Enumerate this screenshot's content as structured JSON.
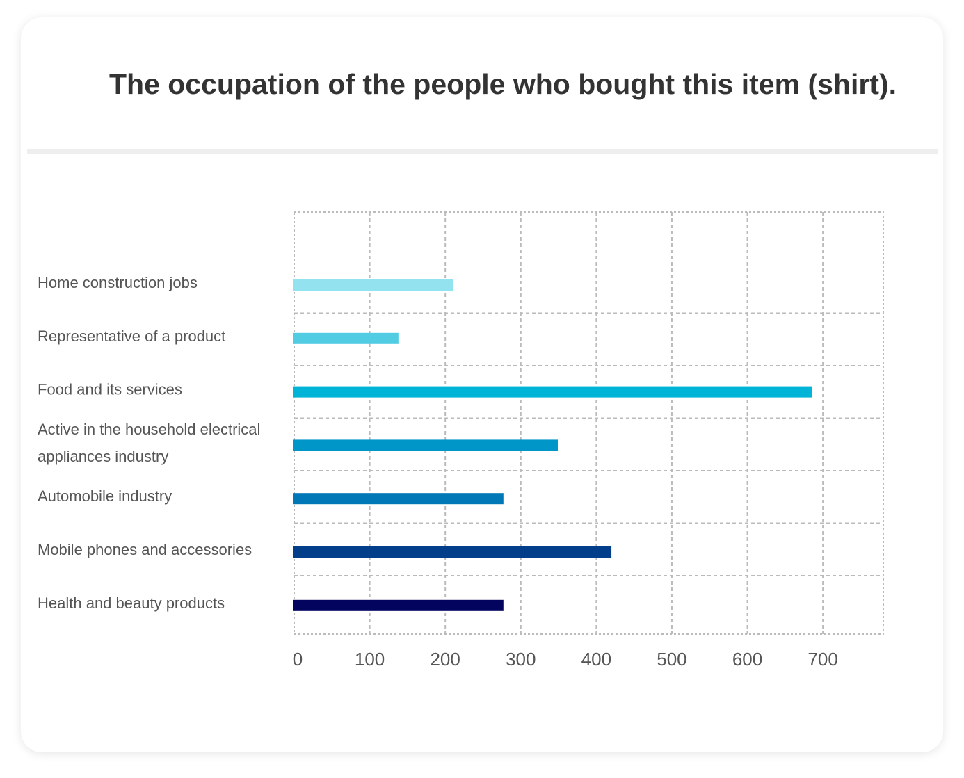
{
  "chart_data": {
    "type": "bar",
    "orientation": "horizontal",
    "title": "The occupation of the people who bought this item (shirt).",
    "xlabel": "",
    "ylabel": "",
    "xlim": [
      0,
      780
    ],
    "xticks": [
      "0",
      "100",
      "200",
      "300",
      "400",
      "500",
      "600",
      "700"
    ],
    "grid": true,
    "legend": "none",
    "categories": [
      [
        "Home construction jobs"
      ],
      [
        "Representative of a product"
      ],
      [
        "Food and its services"
      ],
      [
        "Active in the household electrical",
        "appliances industry"
      ],
      [
        "Automobile industry"
      ],
      [
        "Mobile phones and accessories"
      ],
      [
        "Health and beauty products"
      ]
    ],
    "values": [
      210,
      138,
      686,
      349,
      277,
      420,
      277
    ],
    "colors": [
      "#92e2ef",
      "#52cce3",
      "#00b4d8",
      "#0096c7",
      "#0077b6",
      "#023e8a",
      "#03045e"
    ]
  }
}
